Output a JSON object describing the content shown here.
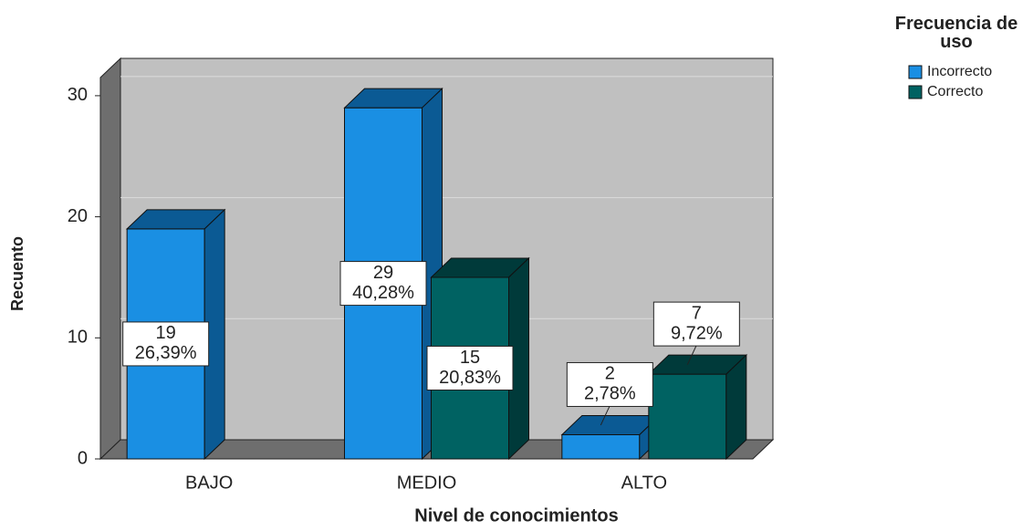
{
  "chart_data": {
    "type": "bar3d",
    "xlabel": "Nivel de conocimientos",
    "ylabel": "Recuento",
    "legend_title": "Frecuencia de uso",
    "categories": [
      "BAJO",
      "MEDIO",
      "ALTO"
    ],
    "series": [
      {
        "name": "Incorrecto",
        "color": "#1a8fe3",
        "side": "#0b5a94",
        "values": [
          19,
          29,
          2
        ],
        "percent": [
          26.39,
          40.28,
          2.78
        ],
        "percent_labels": [
          "26,39%",
          "40,28%",
          "2,78%"
        ]
      },
      {
        "name": "Correcto",
        "color": "#006262",
        "side": "#003a3a",
        "values": [
          null,
          15,
          7
        ],
        "percent": [
          null,
          20.83,
          9.72
        ],
        "percent_labels": [
          null,
          "20,83%",
          "9,72%"
        ]
      }
    ],
    "ylim": [
      0,
      31.5
    ],
    "yticks": [
      0,
      10,
      20,
      30
    ],
    "grid": true
  }
}
